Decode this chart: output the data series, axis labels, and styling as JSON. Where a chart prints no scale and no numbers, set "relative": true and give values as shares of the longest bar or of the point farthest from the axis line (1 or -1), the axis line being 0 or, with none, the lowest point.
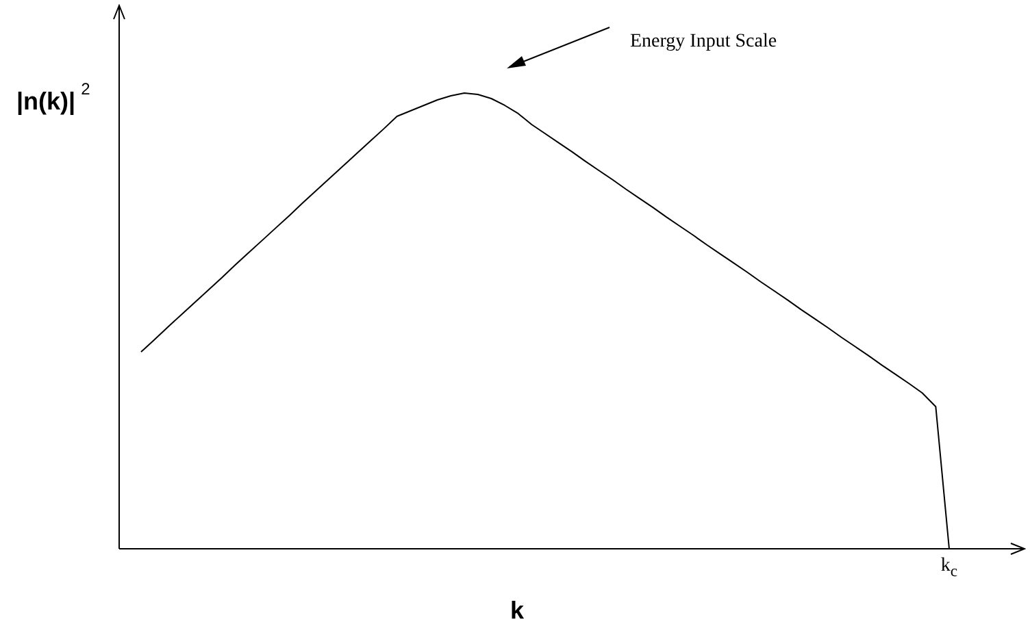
{
  "chart_data": {
    "type": "line",
    "relative": true,
    "xlabel": "k",
    "ylabel": "|n(k)|$^{2}$",
    "annotations": [
      "Energy Input Scale",
      "k$_{c}$"
    ],
    "categories": [
      null,
      null,
      null,
      null,
      null,
      null,
      null,
      null,
      null,
      null,
      null,
      null,
      null,
      null,
      null,
      null,
      null,
      null,
      null,
      null,
      null,
      null,
      null,
      null,
      null,
      null,
      null,
      null,
      null,
      null,
      null,
      null,
      null,
      null,
      null,
      null,
      null,
      null,
      null,
      null,
      null,
      null,
      null,
      null,
      null,
      null,
      null,
      null,
      null,
      null,
      null,
      null,
      null,
      null,
      null,
      null,
      null,
      null,
      null,
      null,
      null
    ],
    "values": [
      0.432,
      0.459,
      0.487,
      0.514,
      0.541,
      0.568,
      0.595,
      0.623,
      0.65,
      0.677,
      0.704,
      0.731,
      0.759,
      0.786,
      0.813,
      0.84,
      0.867,
      0.894,
      0.921,
      0.949,
      0.961,
      0.973,
      0.985,
      0.994,
      1,
      0.997,
      0.988,
      0.973,
      0.955,
      0.931,
      0.911,
      0.891,
      0.871,
      0.85,
      0.83,
      0.81,
      0.789,
      0.769,
      0.749,
      0.728,
      0.708,
      0.688,
      0.667,
      0.647,
      0.627,
      0.607,
      0.586,
      0.566,
      0.546,
      0.525,
      0.505,
      0.485,
      0.464,
      0.444,
      0.424,
      0.403,
      0.383,
      0.363,
      0.342,
      0.312,
      0
    ],
    "color": "#000000",
    "grid": false,
    "legend": false
  }
}
